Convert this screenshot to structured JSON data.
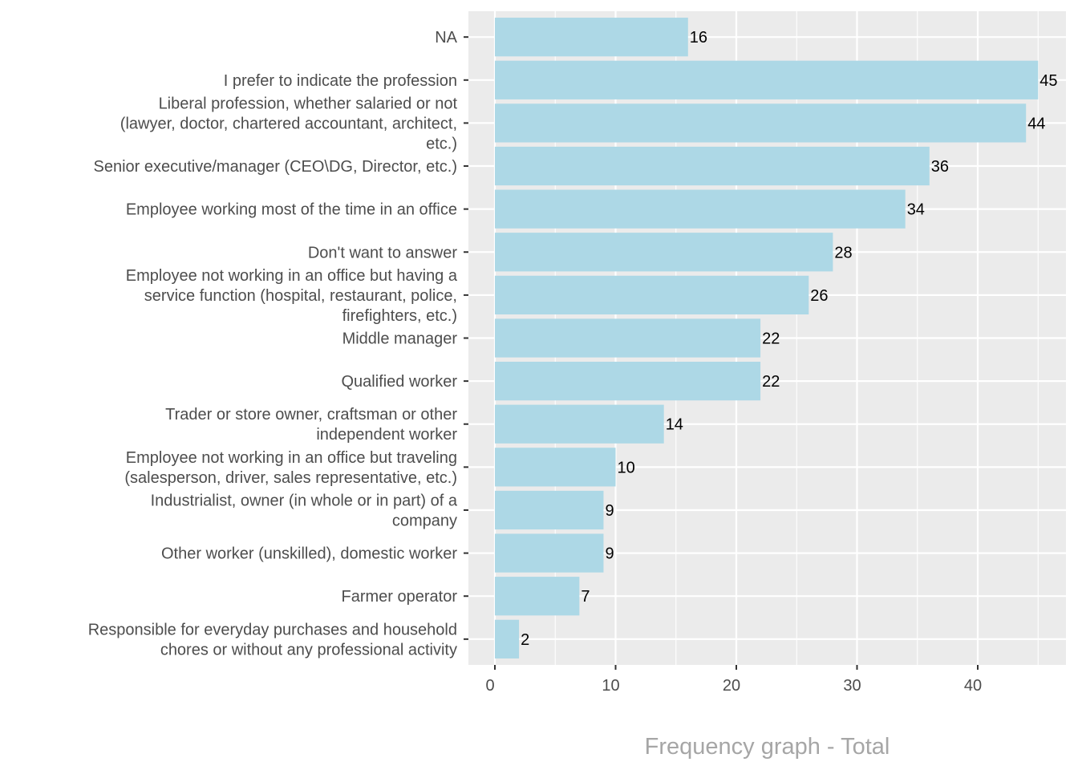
{
  "chart_data": {
    "type": "bar",
    "orientation": "horizontal",
    "title": "Frequency graph - Total",
    "title_position": "bottom",
    "xlabel": "",
    "ylabel": "",
    "xlim": [
      -2.25,
      47.25
    ],
    "xticks": [
      0,
      10,
      20,
      30,
      40
    ],
    "xtick_labels": [
      "0",
      "10",
      "20",
      "30",
      "40"
    ],
    "grid": true,
    "legend": "none",
    "bar_color": "#add8e6",
    "panel_background": "#ebebeb",
    "categories": [
      [
        "NA"
      ],
      [
        "I prefer to indicate the profession"
      ],
      [
        "Liberal profession, whether salaried or not",
        "(lawyer, doctor, chartered accountant, architect,",
        "etc.)"
      ],
      [
        "Senior executive/manager (CEO\\DG, Director, etc.)"
      ],
      [
        "Employee working most of the time in an office"
      ],
      [
        "Don't want to answer"
      ],
      [
        "Employee not working in an office but having a",
        "service function (hospital, restaurant, police,",
        "firefighters, etc.)"
      ],
      [
        "Middle manager"
      ],
      [
        "Qualified worker"
      ],
      [
        "Trader or store owner, craftsman or other",
        "independent worker"
      ],
      [
        "Employee not working in an office but traveling",
        "(salesperson, driver, sales representative, etc.)"
      ],
      [
        "Industrialist, owner (in whole or in part) of a",
        "company"
      ],
      [
        "Other worker (unskilled), domestic worker"
      ],
      [
        "Farmer operator"
      ],
      [
        "Responsible for everyday purchases and household",
        "chores or without any professional activity"
      ]
    ],
    "values": [
      16,
      45,
      44,
      36,
      34,
      28,
      26,
      22,
      22,
      14,
      10,
      9,
      9,
      7,
      2
    ]
  }
}
